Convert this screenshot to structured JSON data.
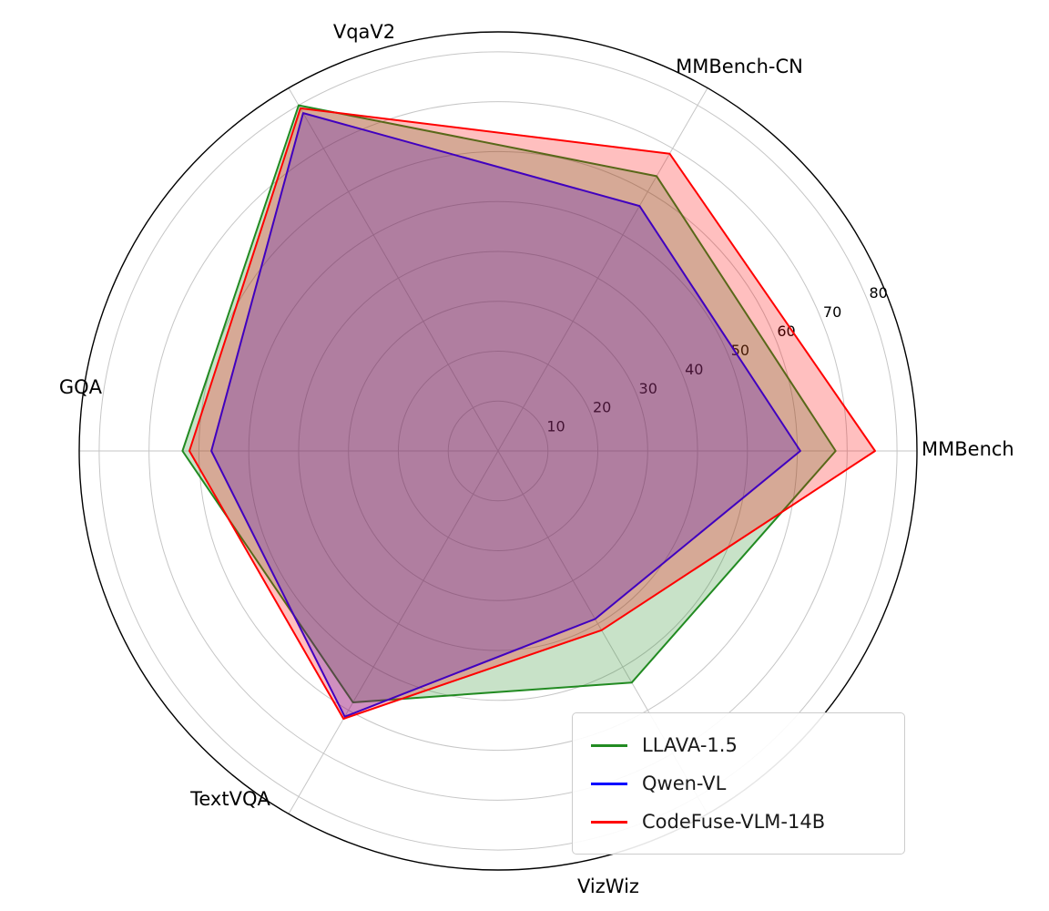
{
  "figure": {
    "background_color": "#ffffff"
  },
  "chart_data": {
    "type": "radar",
    "title": "",
    "categories": [
      "MMBench",
      "MMBench-CN",
      "VqaV2",
      "GQA",
      "TextVQA",
      "VizWiz"
    ],
    "angles_deg": [
      0,
      60,
      120,
      180,
      240,
      300
    ],
    "radial_ticks": [
      10,
      20,
      30,
      40,
      50,
      60,
      70,
      80
    ],
    "r_min": 0,
    "r_max": 84,
    "grid_on": true,
    "grid_color": "#c6c6c6",
    "outer_ring_color": "#000000",
    "fill_opacity": 0.25,
    "line_width": 2,
    "series": [
      {
        "name": "LLAVA-1.5",
        "color": "#228B22",
        "values": [
          67.7,
          63.6,
          80.0,
          63.3,
          58.2,
          53.6
        ]
      },
      {
        "name": "Qwen-VL",
        "color": "#0000FF",
        "values": [
          60.6,
          56.7,
          78.2,
          57.5,
          61.5,
          38.9
        ]
      },
      {
        "name": "CodeFuse-VLM-14B",
        "color": "#FF0000",
        "values": [
          75.6,
          68.8,
          79.3,
          61.9,
          62.0,
          41.5
        ]
      }
    ],
    "legend": {
      "location": "lower right"
    }
  }
}
